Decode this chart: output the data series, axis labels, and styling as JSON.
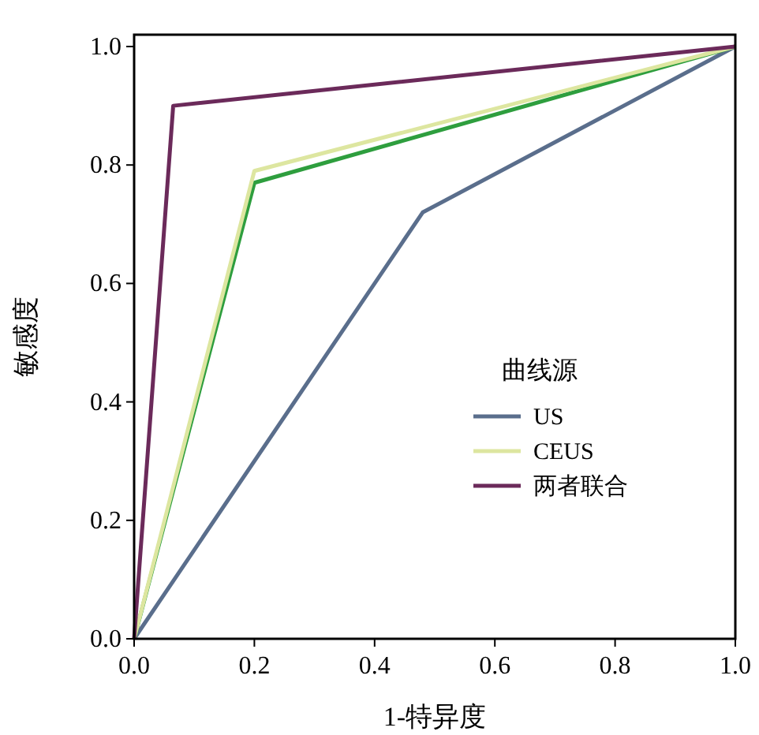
{
  "chart_data": {
    "type": "line",
    "xlabel": "1-特异度",
    "ylabel": "敏感度",
    "legend_title": "曲线源",
    "legend": "bottom right",
    "grid": false,
    "line_style": "solid",
    "xlim": [
      0,
      1
    ],
    "ylim": [
      0,
      1.02
    ],
    "xticks": [
      {
        "value": 0,
        "label": "0.0"
      },
      {
        "value": 0.2,
        "label": "0.2"
      },
      {
        "value": 0.4,
        "label": "0.4"
      },
      {
        "value": 0.6,
        "label": "0.6"
      },
      {
        "value": 0.8,
        "label": "0.8"
      },
      {
        "value": 1,
        "label": "1.0"
      }
    ],
    "yticks": [
      {
        "value": 0,
        "label": "0.0"
      },
      {
        "value": 0.2,
        "label": "0.2"
      },
      {
        "value": 0.4,
        "label": "0.4"
      },
      {
        "value": 0.6,
        "label": "0.6"
      },
      {
        "value": 0.8,
        "label": "0.8"
      },
      {
        "value": 1,
        "label": "1.0"
      }
    ],
    "series": [
      {
        "name": "US",
        "color": "#5a6e8c",
        "x": [
          0,
          0.48,
          1
        ],
        "values": [
          0,
          0.72,
          1
        ]
      },
      {
        "color": "#2e9e3e",
        "x": [
          0,
          0.2,
          1
        ],
        "values": [
          0,
          0.77,
          1
        ]
      },
      {
        "name": "CEUS",
        "color": "#dde6a0",
        "x": [
          0,
          0.2,
          1
        ],
        "values": [
          0,
          0.79,
          1
        ]
      },
      {
        "name": "两者联合",
        "color": "#6b2a5a",
        "x": [
          0,
          0.065,
          1
        ],
        "values": [
          0,
          0.9,
          1
        ]
      }
    ]
  }
}
